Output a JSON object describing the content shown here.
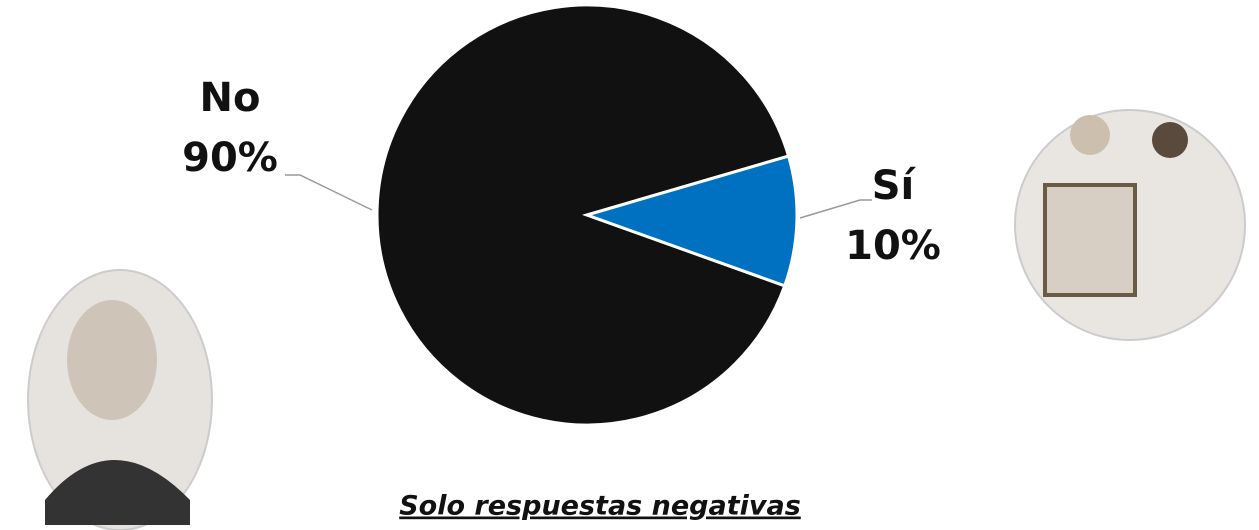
{
  "chart_data": {
    "type": "pie",
    "categories": [
      "No",
      "Sí"
    ],
    "values": [
      90,
      10
    ],
    "value_labels": [
      "90%",
      "10%"
    ],
    "colors": [
      "#111111",
      "#0070c0"
    ],
    "footnote": "Solo respuestas negativas"
  }
}
